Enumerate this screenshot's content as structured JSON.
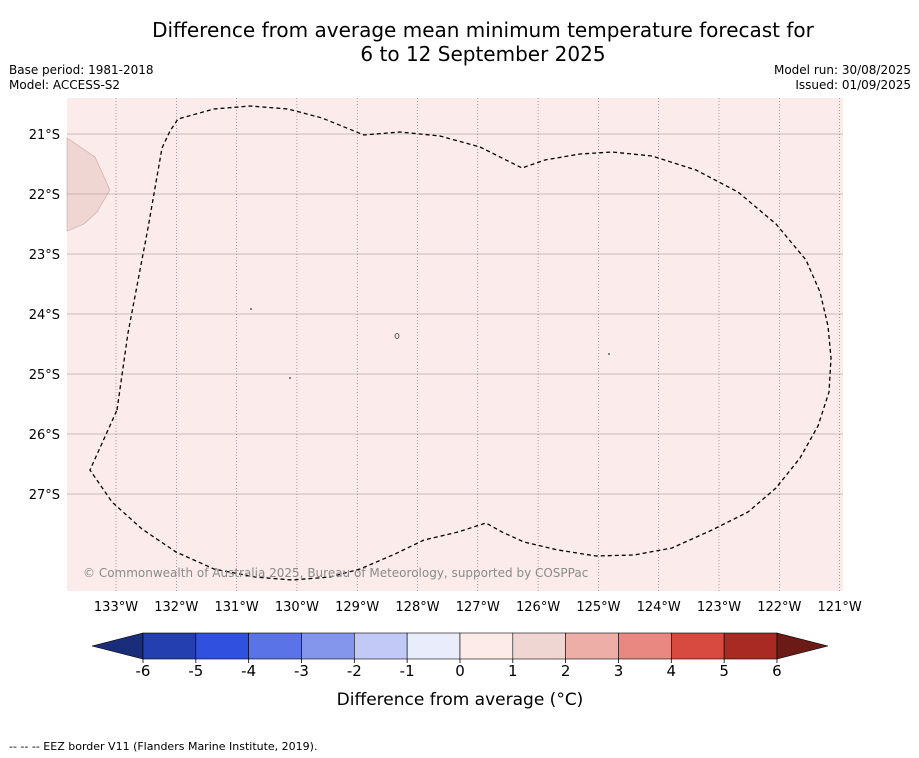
{
  "title_line1": "Difference from average mean minimum temperature forecast for",
  "title_line2": "6 to 12 September 2025",
  "base_period": "Base period: 1981-2018",
  "model": "Model: ACCESS-S2",
  "model_run": "Model run: 30/08/2025",
  "issued": "Issued: 01/09/2025",
  "copyright": "© Commonwealth of Australia 2025, Bureau of Meteorology, supported by COSPPac",
  "map": {
    "lon_labels": [
      "133°W",
      "132°W",
      "131°W",
      "130°W",
      "129°W",
      "128°W",
      "127°W",
      "126°W",
      "125°W",
      "124°W",
      "123°W",
      "122°W",
      "121°W"
    ],
    "lat_labels": [
      "21°S",
      "22°S",
      "23°S",
      "24°S",
      "25°S",
      "26°S",
      "27°S"
    ],
    "field_color": "#fbeceb",
    "patch_color": "#efd6d3"
  },
  "colorbar": {
    "label": "Difference from average (",
    "label_unit": "°C)",
    "ticks": [
      "-6",
      "-5",
      "-4",
      "-3",
      "-2",
      "-1",
      "0",
      "1",
      "2",
      "3",
      "4",
      "5",
      "6"
    ],
    "under_color": "#1a2d7a",
    "over_color": "#6b1a15",
    "colors": [
      "#2440b0",
      "#3050e0",
      "#5a73e6",
      "#8496ec",
      "#c2c9f6",
      "#e8ecfb",
      "#fcebe8",
      "#efd6d3",
      "#eeaea8",
      "#e88880",
      "#d84a40",
      "#a82a22"
    ]
  },
  "legend_text": "-- -- -- EEZ border V11 (Flanders Marine Institute, 2019)."
}
